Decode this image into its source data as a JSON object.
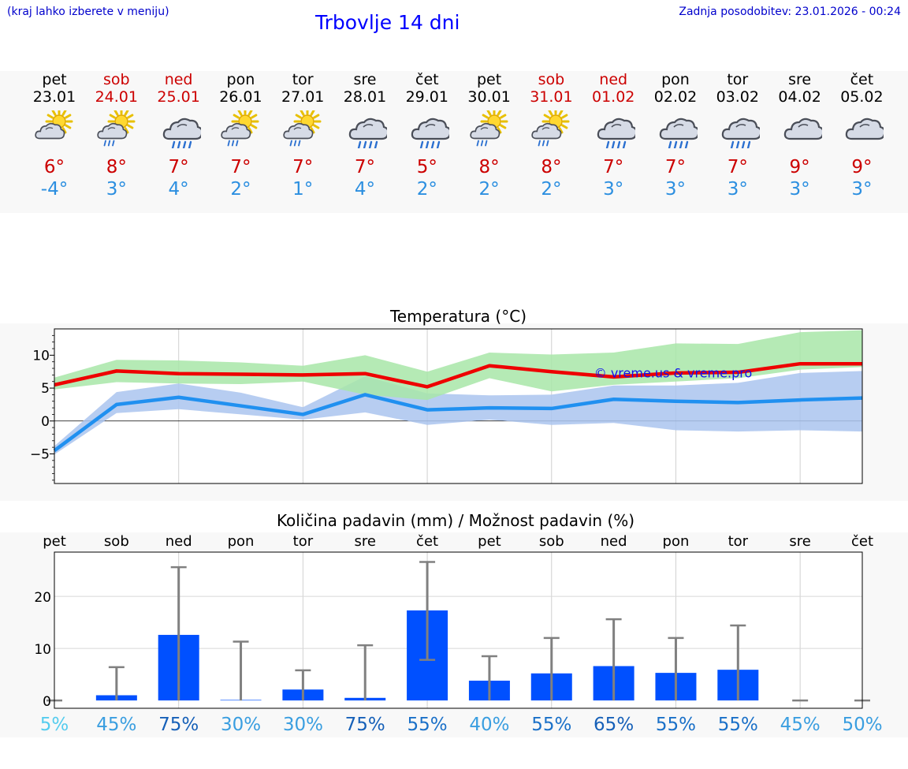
{
  "header": {
    "menu_hint": "(kraj lahko izberete v meniju)",
    "title": "Trbovlje 14 dni",
    "updated": "Zadnja posodobitev: 23.01.2026 - 00:24"
  },
  "colors": {
    "max_temp": "#ee0000",
    "min_temp": "#2090f0",
    "max_band": "#a8e6a8",
    "min_band": "#aac4ee",
    "bar": "#0050ff",
    "errbar": "#808080"
  },
  "forecast": [
    {
      "day": "pet",
      "date": "23.01",
      "weekend": false,
      "icon": "sun-cloud-icon",
      "tmax": "6°",
      "tmin": "-4°"
    },
    {
      "day": "sob",
      "date": "24.01",
      "weekend": true,
      "icon": "sun-cloud-rain-icon",
      "tmax": "8°",
      "tmin": "3°"
    },
    {
      "day": "ned",
      "date": "25.01",
      "weekend": true,
      "icon": "cloud-rain-icon",
      "tmax": "7°",
      "tmin": "4°"
    },
    {
      "day": "pon",
      "date": "26.01",
      "weekend": false,
      "icon": "sun-cloud-rain-icon",
      "tmax": "7°",
      "tmin": "2°"
    },
    {
      "day": "tor",
      "date": "27.01",
      "weekend": false,
      "icon": "sun-cloud-rain-icon",
      "tmax": "7°",
      "tmin": "1°"
    },
    {
      "day": "sre",
      "date": "28.01",
      "weekend": false,
      "icon": "cloud-rain-icon",
      "tmax": "7°",
      "tmin": "4°"
    },
    {
      "day": "čet",
      "date": "29.01",
      "weekend": false,
      "icon": "cloud-rain-icon",
      "tmax": "5°",
      "tmin": "2°"
    },
    {
      "day": "pet",
      "date": "30.01",
      "weekend": false,
      "icon": "sun-cloud-rain-icon",
      "tmax": "8°",
      "tmin": "2°"
    },
    {
      "day": "sob",
      "date": "31.01",
      "weekend": true,
      "icon": "sun-cloud-rain-icon",
      "tmax": "8°",
      "tmin": "2°"
    },
    {
      "day": "ned",
      "date": "01.02",
      "weekend": true,
      "icon": "cloud-rain-icon",
      "tmax": "7°",
      "tmin": "3°"
    },
    {
      "day": "pon",
      "date": "02.02",
      "weekend": false,
      "icon": "cloud-rain-icon",
      "tmax": "7°",
      "tmin": "3°"
    },
    {
      "day": "tor",
      "date": "03.02",
      "weekend": false,
      "icon": "cloud-rain-icon",
      "tmax": "7°",
      "tmin": "3°"
    },
    {
      "day": "sre",
      "date": "04.02",
      "weekend": false,
      "icon": "cloud-icon",
      "tmax": "9°",
      "tmin": "3°"
    },
    {
      "day": "čet",
      "date": "05.02",
      "weekend": false,
      "icon": "cloud-icon",
      "tmax": "9°",
      "tmin": "3°"
    }
  ],
  "chart_data": [
    {
      "type": "line",
      "title": "Temperatura (°C)",
      "x": [
        0,
        1,
        2,
        3,
        4,
        5,
        6,
        7,
        8,
        9,
        10,
        11,
        12,
        13
      ],
      "ylim": [
        -9.5,
        14
      ],
      "yticks": [
        10,
        5,
        0,
        -5
      ],
      "ytick_labels": [
        "10",
        "5",
        "0",
        "−5"
      ],
      "grid": true,
      "watermark": "© vreme.us & vreme.pro",
      "series": [
        {
          "name": "max",
          "values": [
            5.5,
            7.6,
            7.2,
            7.1,
            7.0,
            7.2,
            5.2,
            8.4,
            7.5,
            6.7,
            7.3,
            7.4,
            8.7,
            8.7
          ],
          "band_low": [
            4.8,
            5.9,
            5.7,
            5.6,
            6.0,
            4.0,
            3.2,
            6.5,
            4.5,
            5.5,
            6.0,
            6.5,
            7.8,
            8.2
          ],
          "band_high": [
            6.6,
            9.3,
            9.2,
            8.9,
            8.4,
            10.0,
            7.5,
            10.4,
            10.1,
            10.4,
            11.8,
            11.7,
            13.5,
            13.8
          ]
        },
        {
          "name": "min",
          "values": [
            -4.5,
            2.5,
            3.6,
            2.3,
            1.0,
            4.0,
            1.7,
            2.0,
            1.9,
            3.3,
            3.0,
            2.8,
            3.2,
            3.5
          ],
          "band_low": [
            -5.1,
            1.2,
            1.8,
            1.0,
            0.2,
            1.3,
            -0.6,
            0.2,
            -0.6,
            -0.3,
            -1.4,
            -1.6,
            -1.4,
            -1.6
          ],
          "band_high": [
            -3.8,
            4.4,
            5.7,
            4.3,
            2.1,
            6.8,
            4.2,
            3.9,
            4.0,
            5.4,
            5.4,
            5.8,
            7.3,
            7.6
          ]
        }
      ]
    },
    {
      "type": "bar",
      "title": "Količina padavin (mm) / Možnost padavin (%)",
      "categories": [
        "pet",
        "sob",
        "ned",
        "pon",
        "tor",
        "sre",
        "čet",
        "pet",
        "sob",
        "ned",
        "pon",
        "tor",
        "sre",
        "čet"
      ],
      "values": [
        0,
        1.0,
        12.6,
        0.1,
        2.1,
        0.5,
        17.3,
        3.8,
        5.2,
        6.6,
        5.3,
        5.9,
        0,
        0
      ],
      "error_low": [
        0,
        0,
        0,
        0,
        0,
        0,
        7.8,
        0,
        0,
        0,
        0,
        0,
        0,
        0
      ],
      "error_high": [
        0,
        6.4,
        25.6,
        11.3,
        5.8,
        10.6,
        26.6,
        8.5,
        12.0,
        15.6,
        12.0,
        14.4,
        0,
        0
      ],
      "ylim": [
        -1.5,
        28.5
      ],
      "yticks": [
        20,
        10,
        0
      ],
      "ytick_labels": [
        "20",
        "10",
        "0"
      ],
      "grid": true,
      "probability": [
        "5%",
        "45%",
        "75%",
        "30%",
        "30%",
        "75%",
        "55%",
        "40%",
        "55%",
        "65%",
        "55%",
        "55%",
        "45%",
        "50%"
      ],
      "probability_colors": [
        "#55ccee",
        "#3a9ee0",
        "#1660b8",
        "#3a9ee0",
        "#3a9ee0",
        "#1660b8",
        "#1a70c8",
        "#3a9ee0",
        "#1a70c8",
        "#1660b8",
        "#1a70c8",
        "#1a70c8",
        "#3a9ee0",
        "#3a9ee0"
      ]
    }
  ]
}
